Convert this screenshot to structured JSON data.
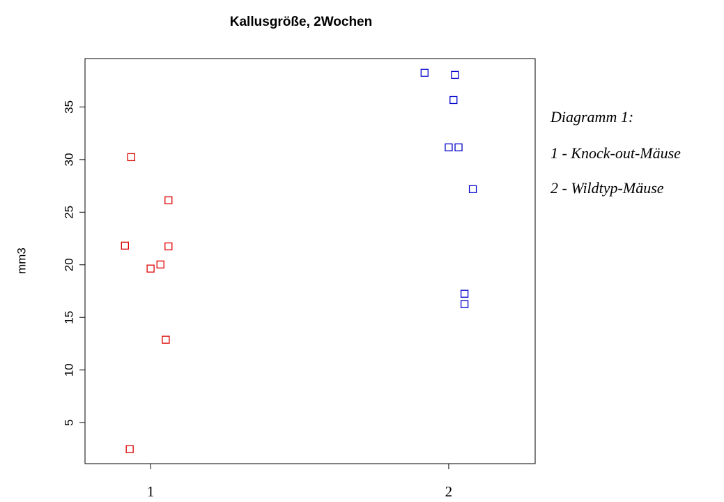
{
  "chart_data": {
    "type": "scatter",
    "title": "Kallusgröße, 2Wochen",
    "y_label": "mm3",
    "annotations": [
      "Diagramm 1:",
      "1 - Knock-out-Mäuse",
      "2 - Wildtyp-Mäuse"
    ],
    "xlim": [
      0.78,
      2.29
    ],
    "xticks": [
      1,
      2
    ],
    "ylim": [
      1.1,
      39.6
    ],
    "yticks": [
      5,
      10,
      15,
      20,
      25,
      30,
      35
    ],
    "series": [
      {
        "color": "#dd0000",
        "x": [
          0.935,
          1.06,
          0.914,
          1.06,
          1.033,
          1.0,
          1.051,
          0.93
        ],
        "values": [
          30.23,
          26.13,
          21.82,
          21.75,
          20.03,
          19.64,
          12.88,
          2.48
        ]
      },
      {
        "color": "#0000cc",
        "x": [
          1.919,
          2.021,
          2.016,
          2.0,
          2.033,
          2.081,
          2.053,
          2.053
        ],
        "values": [
          38.25,
          38.05,
          35.66,
          31.16,
          31.16,
          27.19,
          17.25,
          16.26
        ]
      }
    ]
  }
}
